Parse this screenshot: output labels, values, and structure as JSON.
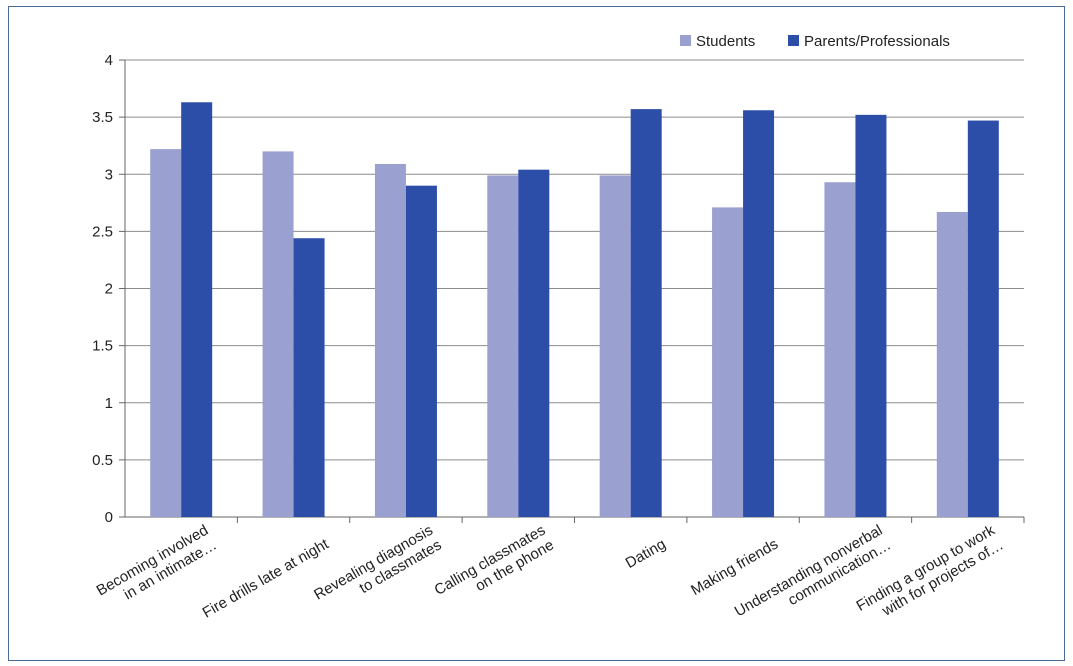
{
  "chart_data": {
    "type": "bar",
    "title": "",
    "xlabel": "",
    "ylabel": "",
    "ylim": [
      0,
      4
    ],
    "yticks": [
      "0",
      "0.5",
      "1",
      "1.5",
      "2",
      "2.5",
      "3",
      "3.5",
      "4"
    ],
    "grid": true,
    "legend_position": "top-right",
    "categories": [
      [
        "Becoming involved",
        "in an intimate…"
      ],
      [
        "Fire drills late at night"
      ],
      [
        "Revealing diagnosis",
        "to classmates"
      ],
      [
        "Calling classmates",
        "on the phone"
      ],
      [
        "Dating"
      ],
      [
        "Making friends"
      ],
      [
        "Understanding nonverbal",
        "communication…"
      ],
      [
        "Finding a group to work",
        "with for projects of…"
      ]
    ],
    "series": [
      {
        "name": "Students",
        "color": "#9aa0d0",
        "values": [
          3.22,
          3.2,
          3.09,
          2.99,
          2.99,
          2.71,
          2.93,
          2.67
        ]
      },
      {
        "name": "Parents/Professionals",
        "color": "#2c4da8",
        "values": [
          3.63,
          2.44,
          2.9,
          3.04,
          3.57,
          3.56,
          3.52,
          3.47
        ]
      }
    ]
  }
}
